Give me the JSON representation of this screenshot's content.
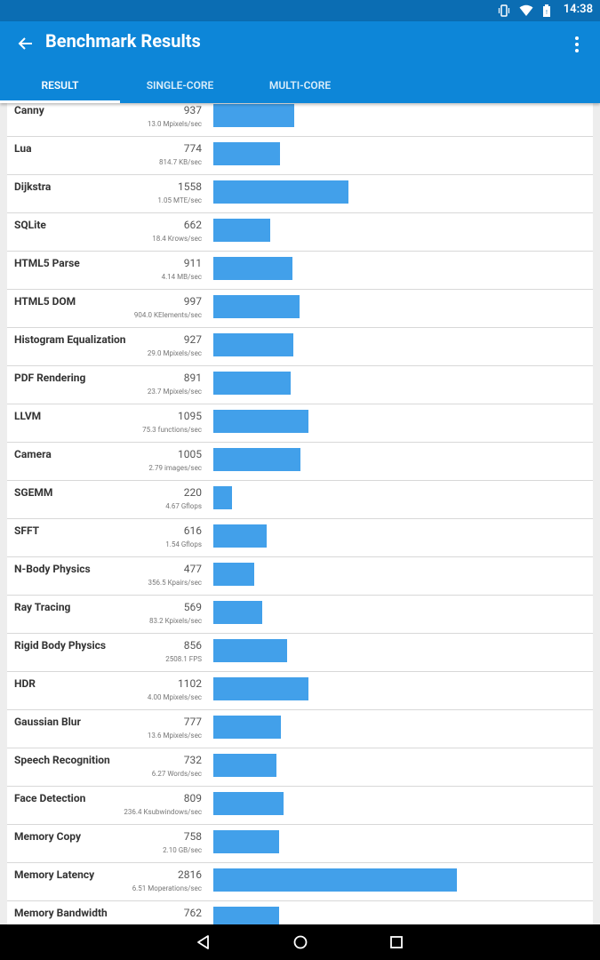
{
  "status": {
    "time": "14:38"
  },
  "appbar": {
    "title": "Benchmark Results"
  },
  "tabs": [
    {
      "label": "RESULT"
    },
    {
      "label": "SINGLE-CORE"
    },
    {
      "label": "MULTI-CORE"
    }
  ],
  "colors": {
    "primary": "#0d86d8",
    "statusbar": "#0b6db3",
    "bar": "#42a0ea"
  },
  "icons": {
    "back": "back-arrow-icon",
    "menu": "overflow-menu-icon"
  },
  "results": [
    {
      "name": "Canny",
      "score": "937",
      "unit": "13.0 Mpixels/sec"
    },
    {
      "name": "Lua",
      "score": "774",
      "unit": "814.7 KB/sec"
    },
    {
      "name": "Dijkstra",
      "score": "1558",
      "unit": "1.05 MTE/sec"
    },
    {
      "name": "SQLite",
      "score": "662",
      "unit": "18.4 Krows/sec"
    },
    {
      "name": "HTML5 Parse",
      "score": "911",
      "unit": "4.14 MB/sec"
    },
    {
      "name": "HTML5 DOM",
      "score": "997",
      "unit": "904.0 KElements/sec"
    },
    {
      "name": "Histogram Equalization",
      "score": "927",
      "unit": "29.0 Mpixels/sec"
    },
    {
      "name": "PDF Rendering",
      "score": "891",
      "unit": "23.7 Mpixels/sec"
    },
    {
      "name": "LLVM",
      "score": "1095",
      "unit": "75.3 functions/sec"
    },
    {
      "name": "Camera",
      "score": "1005",
      "unit": "2.79 images/sec"
    },
    {
      "name": "SGEMM",
      "score": "220",
      "unit": "4.67 Gflops"
    },
    {
      "name": "SFFT",
      "score": "616",
      "unit": "1.54 Gflops"
    },
    {
      "name": "N-Body Physics",
      "score": "477",
      "unit": "356.5 Kpairs/sec"
    },
    {
      "name": "Ray Tracing",
      "score": "569",
      "unit": "83.2 Kpixels/sec"
    },
    {
      "name": "Rigid Body Physics",
      "score": "856",
      "unit": "2508.1 FPS"
    },
    {
      "name": "HDR",
      "score": "1102",
      "unit": "4.00 Mpixels/sec"
    },
    {
      "name": "Gaussian Blur",
      "score": "777",
      "unit": "13.6 Mpixels/sec"
    },
    {
      "name": "Speech Recognition",
      "score": "732",
      "unit": "6.27 Words/sec"
    },
    {
      "name": "Face Detection",
      "score": "809",
      "unit": "236.4 Ksubwindows/sec"
    },
    {
      "name": "Memory Copy",
      "score": "758",
      "unit": "2.10 GB/sec"
    },
    {
      "name": "Memory Latency",
      "score": "2816",
      "unit": "6.51 Moperations/sec"
    },
    {
      "name": "Memory Bandwidth",
      "score": "762",
      "unit": ""
    }
  ]
}
